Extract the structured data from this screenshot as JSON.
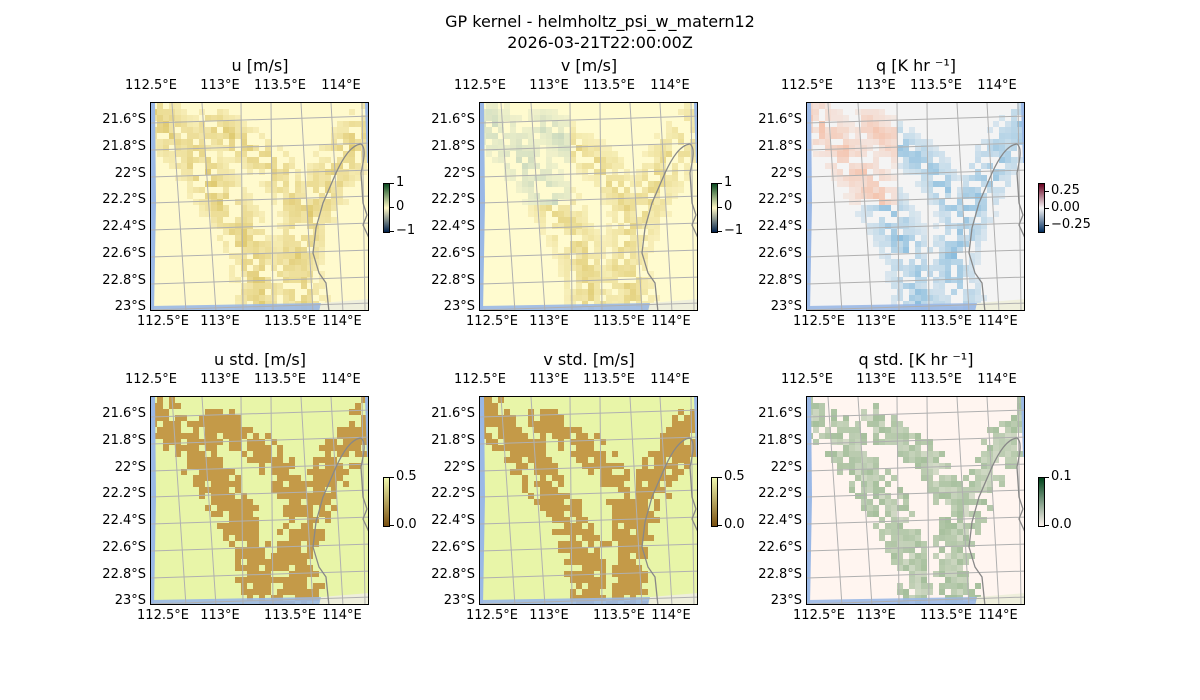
{
  "figure": {
    "title": "GP kernel - helmholtz_psi_w_matern12",
    "subtitle": "2026-03-21T22:00:00Z"
  },
  "lon_ticks": [
    "112.5°E",
    "113°E",
    "113.5°E",
    "114°E"
  ],
  "lat_ticks": [
    "21.6°S",
    "21.8°S",
    "22°S",
    "22.2°S",
    "22.4°S",
    "22.6°S",
    "22.8°S",
    "23°S"
  ],
  "panels": [
    {
      "title": "u [m/s]",
      "colorbar": {
        "ticks": [
          "1",
          "0",
          "−1"
        ],
        "colors": [
          "#0a4a20",
          "#fff9c8",
          "#00204a"
        ]
      },
      "background": "#fffacd",
      "blob": "#c9a832",
      "blob2": "#c9a832"
    },
    {
      "title": "v [m/s]",
      "colorbar": {
        "ticks": [
          "1",
          "0",
          "−1"
        ],
        "colors": [
          "#0a4a20",
          "#fff9c8",
          "#00204a"
        ]
      },
      "background": "#fffbcf",
      "blob": "#d2b64a",
      "blob2": "#a9c4b4"
    },
    {
      "title": "q [K hr ⁻¹]",
      "colorbar": {
        "ticks": [
          "0.25",
          "0.00",
          "−0.25"
        ],
        "colors": [
          "#67001f",
          "#f7f7f7",
          "#053061"
        ]
      },
      "background": "#f4f4f4",
      "blob": "#4d9dd0",
      "blob2": "#f4a582"
    },
    {
      "title": "u std. [m/s]",
      "colorbar": {
        "ticks": [
          "0.5",
          "0.0"
        ],
        "colors": [
          "#f0f8b0",
          "#7a5010"
        ]
      },
      "background": "#e8f5a8",
      "blob": "#c49a48",
      "blob2": "#c49a48"
    },
    {
      "title": "v std. [m/s]",
      "colorbar": {
        "ticks": [
          "0.5",
          "0.0"
        ],
        "colors": [
          "#f0f8b0",
          "#7a5010"
        ]
      },
      "background": "#e8f5a8",
      "blob": "#c49a48",
      "blob2": "#c49a48"
    },
    {
      "title": "q std. [K hr ⁻¹]",
      "colorbar": {
        "ticks": [
          "0.1",
          "0.0"
        ],
        "colors": [
          "#00441b",
          "#fff5f0"
        ]
      },
      "background": "#fff5f0",
      "blob": "#7fa878",
      "blob2": "#b8c4b0"
    }
  ],
  "colors": {
    "ocean": "#9ab8e6",
    "land": "#efefdc",
    "grid": "#b0b0b0",
    "coast": "#888888"
  }
}
